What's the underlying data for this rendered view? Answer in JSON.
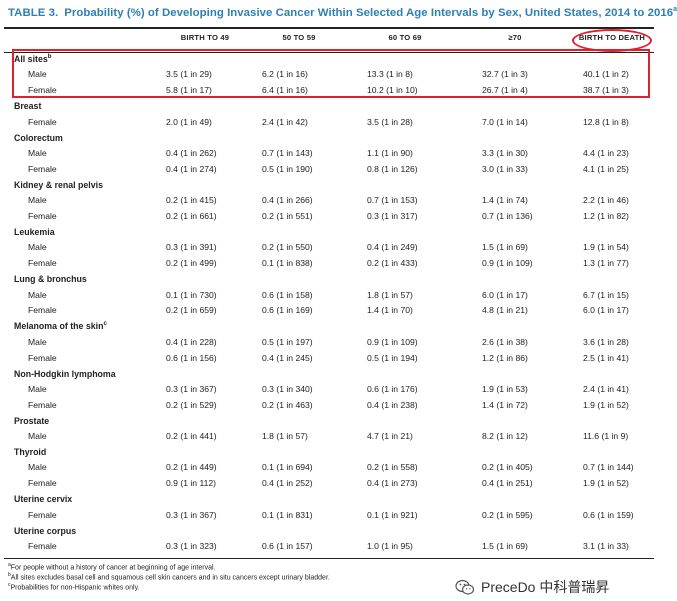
{
  "title": {
    "label": "TABLE 3.",
    "text": "Probability (%) of Developing Invasive Cancer Within Selected Age Intervals by Sex, United States, 2014 to 2016",
    "sup": "a"
  },
  "columns": [
    "BIRTH TO 49",
    "50 TO 59",
    "60 TO 69",
    "≥70",
    "BIRTH TO DEATH"
  ],
  "rows": [
    {
      "type": "site",
      "label": "All sites",
      "sup": "b"
    },
    {
      "type": "sex",
      "label": "Male",
      "v": [
        "3.5 (1 in 29)",
        "6.2 (1 in 16)",
        "13.3 (1 in 8)",
        "32.7 (1 in 3)",
        "40.1 (1 in 2)"
      ]
    },
    {
      "type": "sex",
      "label": "Female",
      "v": [
        "5.8 (1 in 17)",
        "6.4 (1 in 16)",
        "10.2 (1 in 10)",
        "26.7 (1 in 4)",
        "38.7 (1 in 3)"
      ]
    },
    {
      "type": "site",
      "label": "Breast"
    },
    {
      "type": "sex",
      "label": "Female",
      "v": [
        "2.0 (1 in 49)",
        "2.4 (1 in 42)",
        "3.5 (1 in 28)",
        "7.0 (1 in 14)",
        "12.8 (1 in 8)"
      ]
    },
    {
      "type": "site",
      "label": "Colorectum"
    },
    {
      "type": "sex",
      "label": "Male",
      "v": [
        "0.4 (1 in 262)",
        "0.7 (1 in 143)",
        "1.1 (1 in 90)",
        "3.3 (1 in 30)",
        "4.4 (1 in 23)"
      ]
    },
    {
      "type": "sex",
      "label": "Female",
      "v": [
        "0.4 (1 in 274)",
        "0.5 (1 in 190)",
        "0.8 (1 in 126)",
        "3.0 (1 in 33)",
        "4.1 (1 in 25)"
      ]
    },
    {
      "type": "site",
      "label": "Kidney & renal pelvis"
    },
    {
      "type": "sex",
      "label": "Male",
      "v": [
        "0.2 (1 in 415)",
        "0.4 (1 in 266)",
        "0.7 (1 in 153)",
        "1.4 (1 in 74)",
        "2.2 (1 in 46)"
      ]
    },
    {
      "type": "sex",
      "label": "Female",
      "v": [
        "0.2 (1 in 661)",
        "0.2 (1 in 551)",
        "0.3 (1 in 317)",
        "0.7 (1 in 136)",
        "1.2 (1 in 82)"
      ]
    },
    {
      "type": "site",
      "label": "Leukemia"
    },
    {
      "type": "sex",
      "label": "Male",
      "v": [
        "0.3 (1 in 391)",
        "0.2 (1 in 550)",
        "0.4 (1 in 249)",
        "1.5 (1 in 69)",
        "1.9 (1 in 54)"
      ]
    },
    {
      "type": "sex",
      "label": "Female",
      "v": [
        "0.2 (1 in 499)",
        "0.1 (1 in 838)",
        "0.2 (1 in 433)",
        "0.9 (1 in 109)",
        "1.3 (1 in 77)"
      ]
    },
    {
      "type": "site",
      "label": "Lung & bronchus"
    },
    {
      "type": "sex",
      "label": "Male",
      "v": [
        "0.1 (1 in 730)",
        "0.6 (1 in 158)",
        "1.8 (1 in 57)",
        "6.0 (1 in 17)",
        "6.7 (1 in 15)"
      ]
    },
    {
      "type": "sex",
      "label": "Female",
      "v": [
        "0.2 (1 in 659)",
        "0.6 (1 in 169)",
        "1.4 (1 in 70)",
        "4.8 (1 in 21)",
        "6.0 (1 in 17)"
      ]
    },
    {
      "type": "site",
      "label": "Melanoma of the skin",
      "sup": "c"
    },
    {
      "type": "sex",
      "label": "Male",
      "v": [
        "0.4 (1 in 228)",
        "0.5 (1 in 197)",
        "0.9 (1 in 109)",
        "2.6 (1 in 38)",
        "3.6 (1 in 28)"
      ]
    },
    {
      "type": "sex",
      "label": "Female",
      "v": [
        "0.6 (1 in 156)",
        "0.4 (1 in 245)",
        "0.5 (1 in 194)",
        "1.2 (1 in 86)",
        "2.5 (1 in 41)"
      ]
    },
    {
      "type": "site",
      "label": "Non-Hodgkin lymphoma"
    },
    {
      "type": "sex",
      "label": "Male",
      "v": [
        "0.3 (1 in 367)",
        "0.3 (1 in 340)",
        "0.6 (1 in 176)",
        "1.9 (1 in 53)",
        "2.4 (1 in 41)"
      ]
    },
    {
      "type": "sex",
      "label": "Female",
      "v": [
        "0.2 (1 in 529)",
        "0.2 (1 in 463)",
        "0.4 (1 in 238)",
        "1.4 (1 in 72)",
        "1.9 (1 in 52)"
      ]
    },
    {
      "type": "site",
      "label": "Prostate"
    },
    {
      "type": "sex",
      "label": "Male",
      "v": [
        "0.2 (1 in 441)",
        "1.8 (1 in 57)",
        "4.7 (1 in 21)",
        "8.2 (1 in 12)",
        "11.6 (1 in 9)"
      ]
    },
    {
      "type": "site",
      "label": "Thyroid"
    },
    {
      "type": "sex",
      "label": "Male",
      "v": [
        "0.2 (1 in 449)",
        "0.1 (1 in 694)",
        "0.2 (1 in 558)",
        "0.2 (1 in 405)",
        "0.7 (1 in 144)"
      ]
    },
    {
      "type": "sex",
      "label": "Female",
      "v": [
        "0.9 (1 in 112)",
        "0.4 (1 in 252)",
        "0.4 (1 in 273)",
        "0.4 (1 in 251)",
        "1.9 (1 in 52)"
      ]
    },
    {
      "type": "site",
      "label": "Uterine cervix"
    },
    {
      "type": "sex",
      "label": "Female",
      "v": [
        "0.3 (1 in 367)",
        "0.1 (1 in 831)",
        "0.1 (1 in 921)",
        "0.2 (1 in 595)",
        "0.6 (1 in 159)"
      ]
    },
    {
      "type": "site",
      "label": "Uterine corpus"
    },
    {
      "type": "sex",
      "label": "Female",
      "v": [
        "0.3 (1 in 323)",
        "0.6 (1 in 157)",
        "1.0 (1 in 95)",
        "1.5 (1 in 69)",
        "3.1 (1 in 33)"
      ]
    }
  ],
  "footnotes": [
    {
      "sup": "a",
      "text": "For people without a history of cancer at beginning of age interval."
    },
    {
      "sup": "b",
      "text": "All sites excludes basal cell and squamous cell skin cancers and in situ cancers except urinary bladder."
    },
    {
      "sup": "c",
      "text": "Probabilities for non-Hispanic whites only."
    }
  ],
  "watermark": {
    "text": "PreceDo 中科普瑞昇",
    "icon": "wechat-icon"
  },
  "colors": {
    "title": "#2e7fb3",
    "highlight": "#e0202c"
  }
}
